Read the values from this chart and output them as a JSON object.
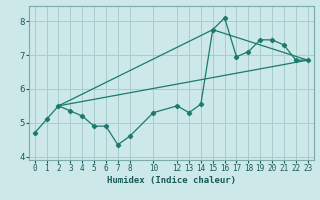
{
  "xlabel": "Humidex (Indice chaleur)",
  "bg_color": "#cce8e8",
  "grid_color": "#aacccc",
  "line_color": "#1a7a6e",
  "xlim": [
    -0.5,
    23.5
  ],
  "ylim": [
    3.9,
    8.45
  ],
  "yticks": [
    4,
    5,
    6,
    7,
    8
  ],
  "xticks": [
    0,
    1,
    2,
    3,
    4,
    5,
    6,
    7,
    8,
    10,
    12,
    13,
    14,
    15,
    16,
    17,
    18,
    19,
    20,
    21,
    22,
    23
  ],
  "series1_x": [
    0,
    1,
    2,
    3,
    4,
    5,
    6,
    7,
    8,
    10,
    12,
    13,
    14,
    15,
    16,
    17,
    18,
    19,
    20,
    21,
    22,
    23
  ],
  "series1_y": [
    4.7,
    5.1,
    5.5,
    5.35,
    5.2,
    4.9,
    4.9,
    4.35,
    4.6,
    5.3,
    5.5,
    5.3,
    5.55,
    7.75,
    8.1,
    6.95,
    7.1,
    7.45,
    7.45,
    7.3,
    6.85,
    6.85
  ],
  "series2_x": [
    2,
    23
  ],
  "series2_y": [
    5.5,
    6.85
  ],
  "series3_x": [
    2,
    15
  ],
  "series3_y": [
    5.5,
    7.75
  ],
  "series4_x": [
    15,
    23
  ],
  "series4_y": [
    7.75,
    6.85
  ]
}
